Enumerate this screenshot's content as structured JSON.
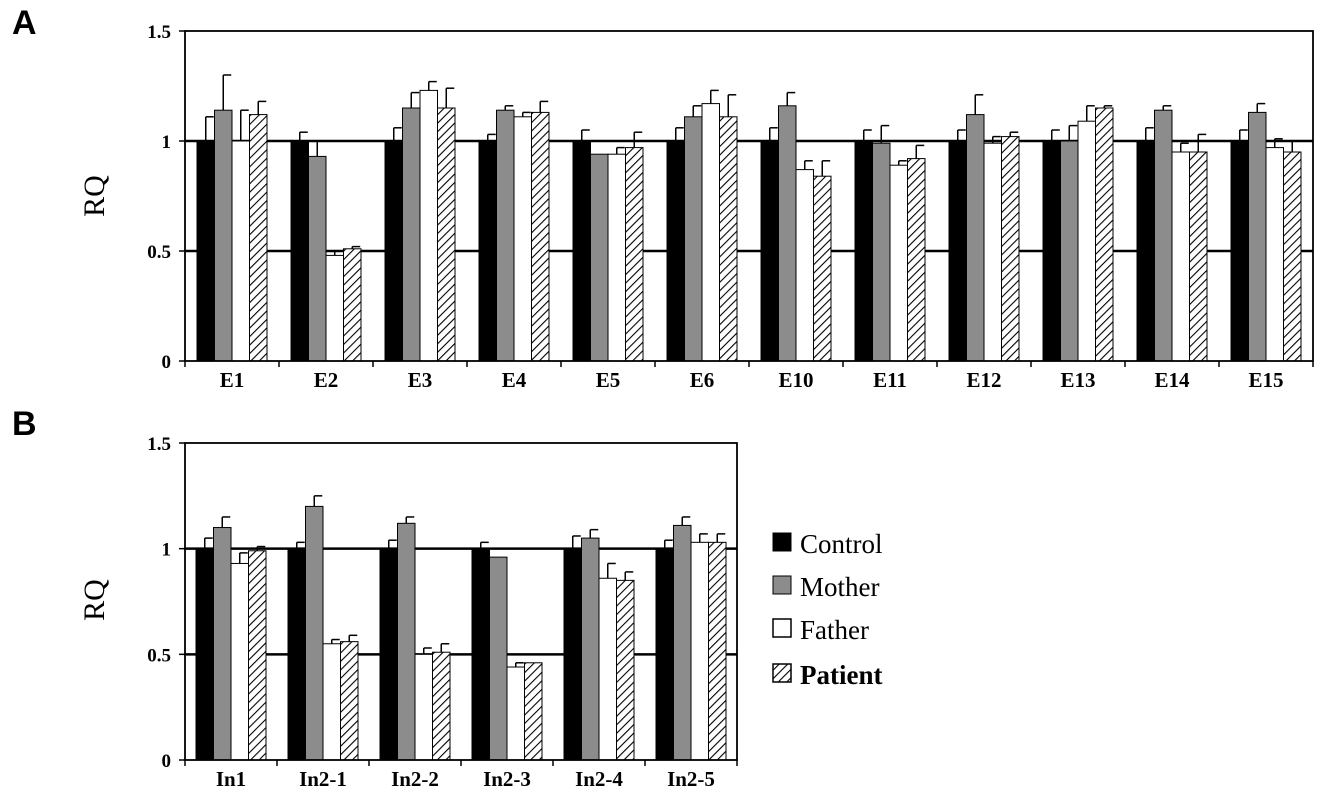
{
  "colors": {
    "Control": "#000000",
    "Mother": "#8c8c8c",
    "Father": "#ffffff",
    "Patient": "hatched"
  },
  "legend": {
    "items": [
      {
        "name": "Control"
      },
      {
        "name": "Mother"
      },
      {
        "name": "Father"
      },
      {
        "name": "Patient"
      }
    ]
  },
  "chart_data": [
    {
      "panel": "A",
      "type": "bar",
      "ylabel": "RQ",
      "ylim": [
        0,
        1.5
      ],
      "yticks": [
        "0",
        "0.5",
        "1",
        "1.5"
      ],
      "gridlines": [
        0.5,
        1.0
      ],
      "categories": [
        "E1",
        "E2",
        "E3",
        "E4",
        "E5",
        "E6",
        "E10",
        "E11",
        "E12",
        "E13",
        "E14",
        "E15"
      ],
      "series": [
        {
          "name": "Control",
          "values": [
            1.0,
            1.0,
            1.0,
            1.0,
            1.0,
            1.0,
            1.0,
            1.0,
            1.0,
            1.0,
            1.0,
            1.0
          ],
          "errors": [
            0.11,
            0.04,
            0.06,
            0.03,
            0.05,
            0.06,
            0.06,
            0.05,
            0.05,
            0.05,
            0.06,
            0.05
          ]
        },
        {
          "name": "Mother",
          "values": [
            1.14,
            0.93,
            1.15,
            1.14,
            0.94,
            1.11,
            1.16,
            0.99,
            1.12,
            1.0,
            1.14,
            1.13
          ],
          "errors": [
            0.16,
            0.07,
            0.07,
            0.02,
            0.0,
            0.05,
            0.06,
            0.08,
            0.09,
            0.07,
            0.02,
            0.04
          ]
        },
        {
          "name": "Father",
          "values": [
            1.0,
            0.48,
            1.23,
            1.11,
            0.94,
            1.17,
            0.87,
            0.89,
            0.99,
            1.09,
            0.95,
            0.97
          ],
          "errors": [
            0.14,
            0.02,
            0.04,
            0.02,
            0.03,
            0.06,
            0.04,
            0.02,
            0.03,
            0.07,
            0.04,
            0.04
          ]
        },
        {
          "name": "Patient",
          "values": [
            1.12,
            0.51,
            1.15,
            1.13,
            0.97,
            1.11,
            0.84,
            0.92,
            1.02,
            1.15,
            0.95,
            0.95
          ],
          "errors": [
            0.06,
            0.01,
            0.09,
            0.05,
            0.07,
            0.1,
            0.07,
            0.06,
            0.02,
            0.01,
            0.08,
            0.05
          ]
        }
      ]
    },
    {
      "panel": "B",
      "type": "bar",
      "ylabel": "RQ",
      "ylim": [
        0,
        1.5
      ],
      "yticks": [
        "0",
        "0.5",
        "1",
        "1.5"
      ],
      "gridlines": [
        0.5,
        1.0
      ],
      "categories": [
        "In1",
        "In2-1",
        "In2-2",
        "In2-3",
        "In2-4",
        "In2-5"
      ],
      "series": [
        {
          "name": "Control",
          "values": [
            1.0,
            1.0,
            1.0,
            1.0,
            1.0,
            1.0
          ],
          "errors": [
            0.05,
            0.03,
            0.04,
            0.03,
            0.06,
            0.04
          ]
        },
        {
          "name": "Mother",
          "values": [
            1.1,
            1.2,
            1.12,
            0.96,
            1.05,
            1.11
          ],
          "errors": [
            0.05,
            0.05,
            0.03,
            0.0,
            0.04,
            0.04
          ]
        },
        {
          "name": "Father",
          "values": [
            0.93,
            0.55,
            0.5,
            0.44,
            0.86,
            1.03
          ],
          "errors": [
            0.05,
            0.02,
            0.03,
            0.02,
            0.07,
            0.04
          ]
        },
        {
          "name": "Patient",
          "values": [
            0.99,
            0.56,
            0.51,
            0.46,
            0.85,
            1.03
          ],
          "errors": [
            0.02,
            0.03,
            0.04,
            0.0,
            0.04,
            0.04
          ]
        }
      ]
    }
  ]
}
